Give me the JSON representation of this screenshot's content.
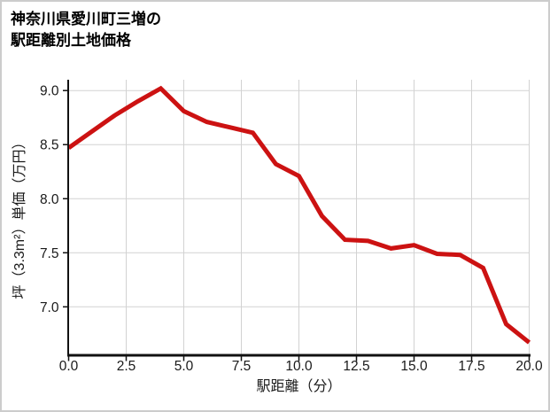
{
  "chart_data": {
    "type": "line",
    "title": "神奈川県愛川町三増の駅距離別土地価格",
    "title_lines": [
      "神奈川県愛川町三増の",
      "駅距離別土地価格"
    ],
    "xlabel": "駅距離（分）",
    "ylabel": "坪（3.3m²）単価（万円）",
    "legend_position": "none",
    "grid": true,
    "x": [
      0,
      1,
      2,
      3,
      4,
      5,
      6,
      7,
      8,
      9,
      10,
      11,
      12,
      13,
      14,
      15,
      16,
      17,
      18,
      19,
      20
    ],
    "values": [
      8.47,
      8.62,
      8.77,
      8.9,
      9.02,
      8.81,
      8.71,
      8.66,
      8.61,
      8.32,
      8.21,
      7.84,
      7.62,
      7.61,
      7.54,
      7.57,
      7.49,
      7.48,
      7.36,
      6.84,
      6.67
    ],
    "x_ticks": [
      0,
      2.5,
      5,
      7.5,
      10,
      12.5,
      15,
      17.5,
      20
    ],
    "x_tick_labels": [
      "0.0",
      "2.5",
      "5.0",
      "7.5",
      "10.0",
      "12.5",
      "15.0",
      "17.5",
      "20.0"
    ],
    "y_ticks": [
      9.0,
      8.5,
      8.0,
      7.5,
      7.0
    ],
    "y_tick_labels": [
      "9.0",
      "8.5",
      "8.0",
      "7.5",
      "7.0"
    ],
    "xlim": [
      0,
      20
    ],
    "ylim": [
      6.56,
      9.1
    ],
    "line_color": "#cc1212",
    "grid_color": "#d2d2d2",
    "axis_color": "#111111",
    "text_color": "#1a1a1a"
  }
}
